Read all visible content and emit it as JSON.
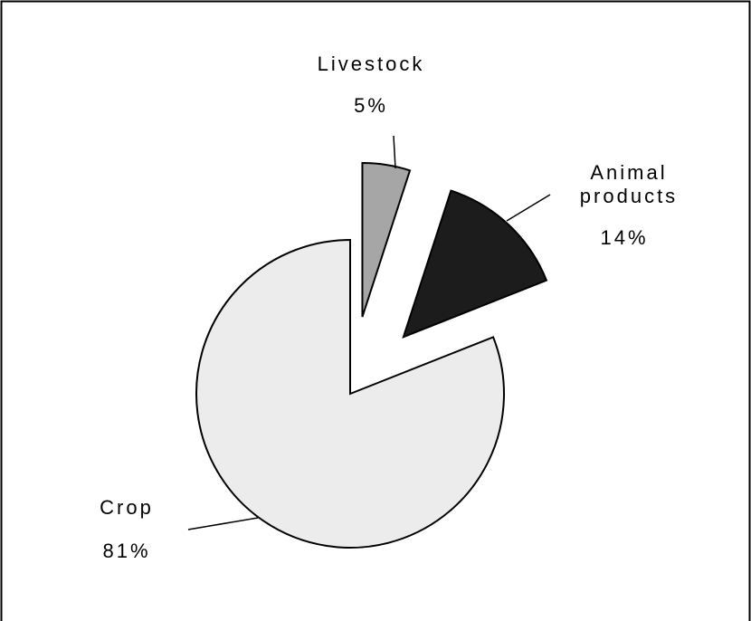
{
  "chart_data": {
    "type": "pie",
    "categories": [
      "Livestock",
      "Animal products",
      "Crop"
    ],
    "values": [
      5,
      14,
      81
    ],
    "value_labels": [
      "5%",
      "14%",
      "81%"
    ],
    "colors": [
      "#a6a6a6",
      "#1c1c1c",
      "#ececec"
    ],
    "explode": [
      true,
      true,
      false
    ]
  }
}
